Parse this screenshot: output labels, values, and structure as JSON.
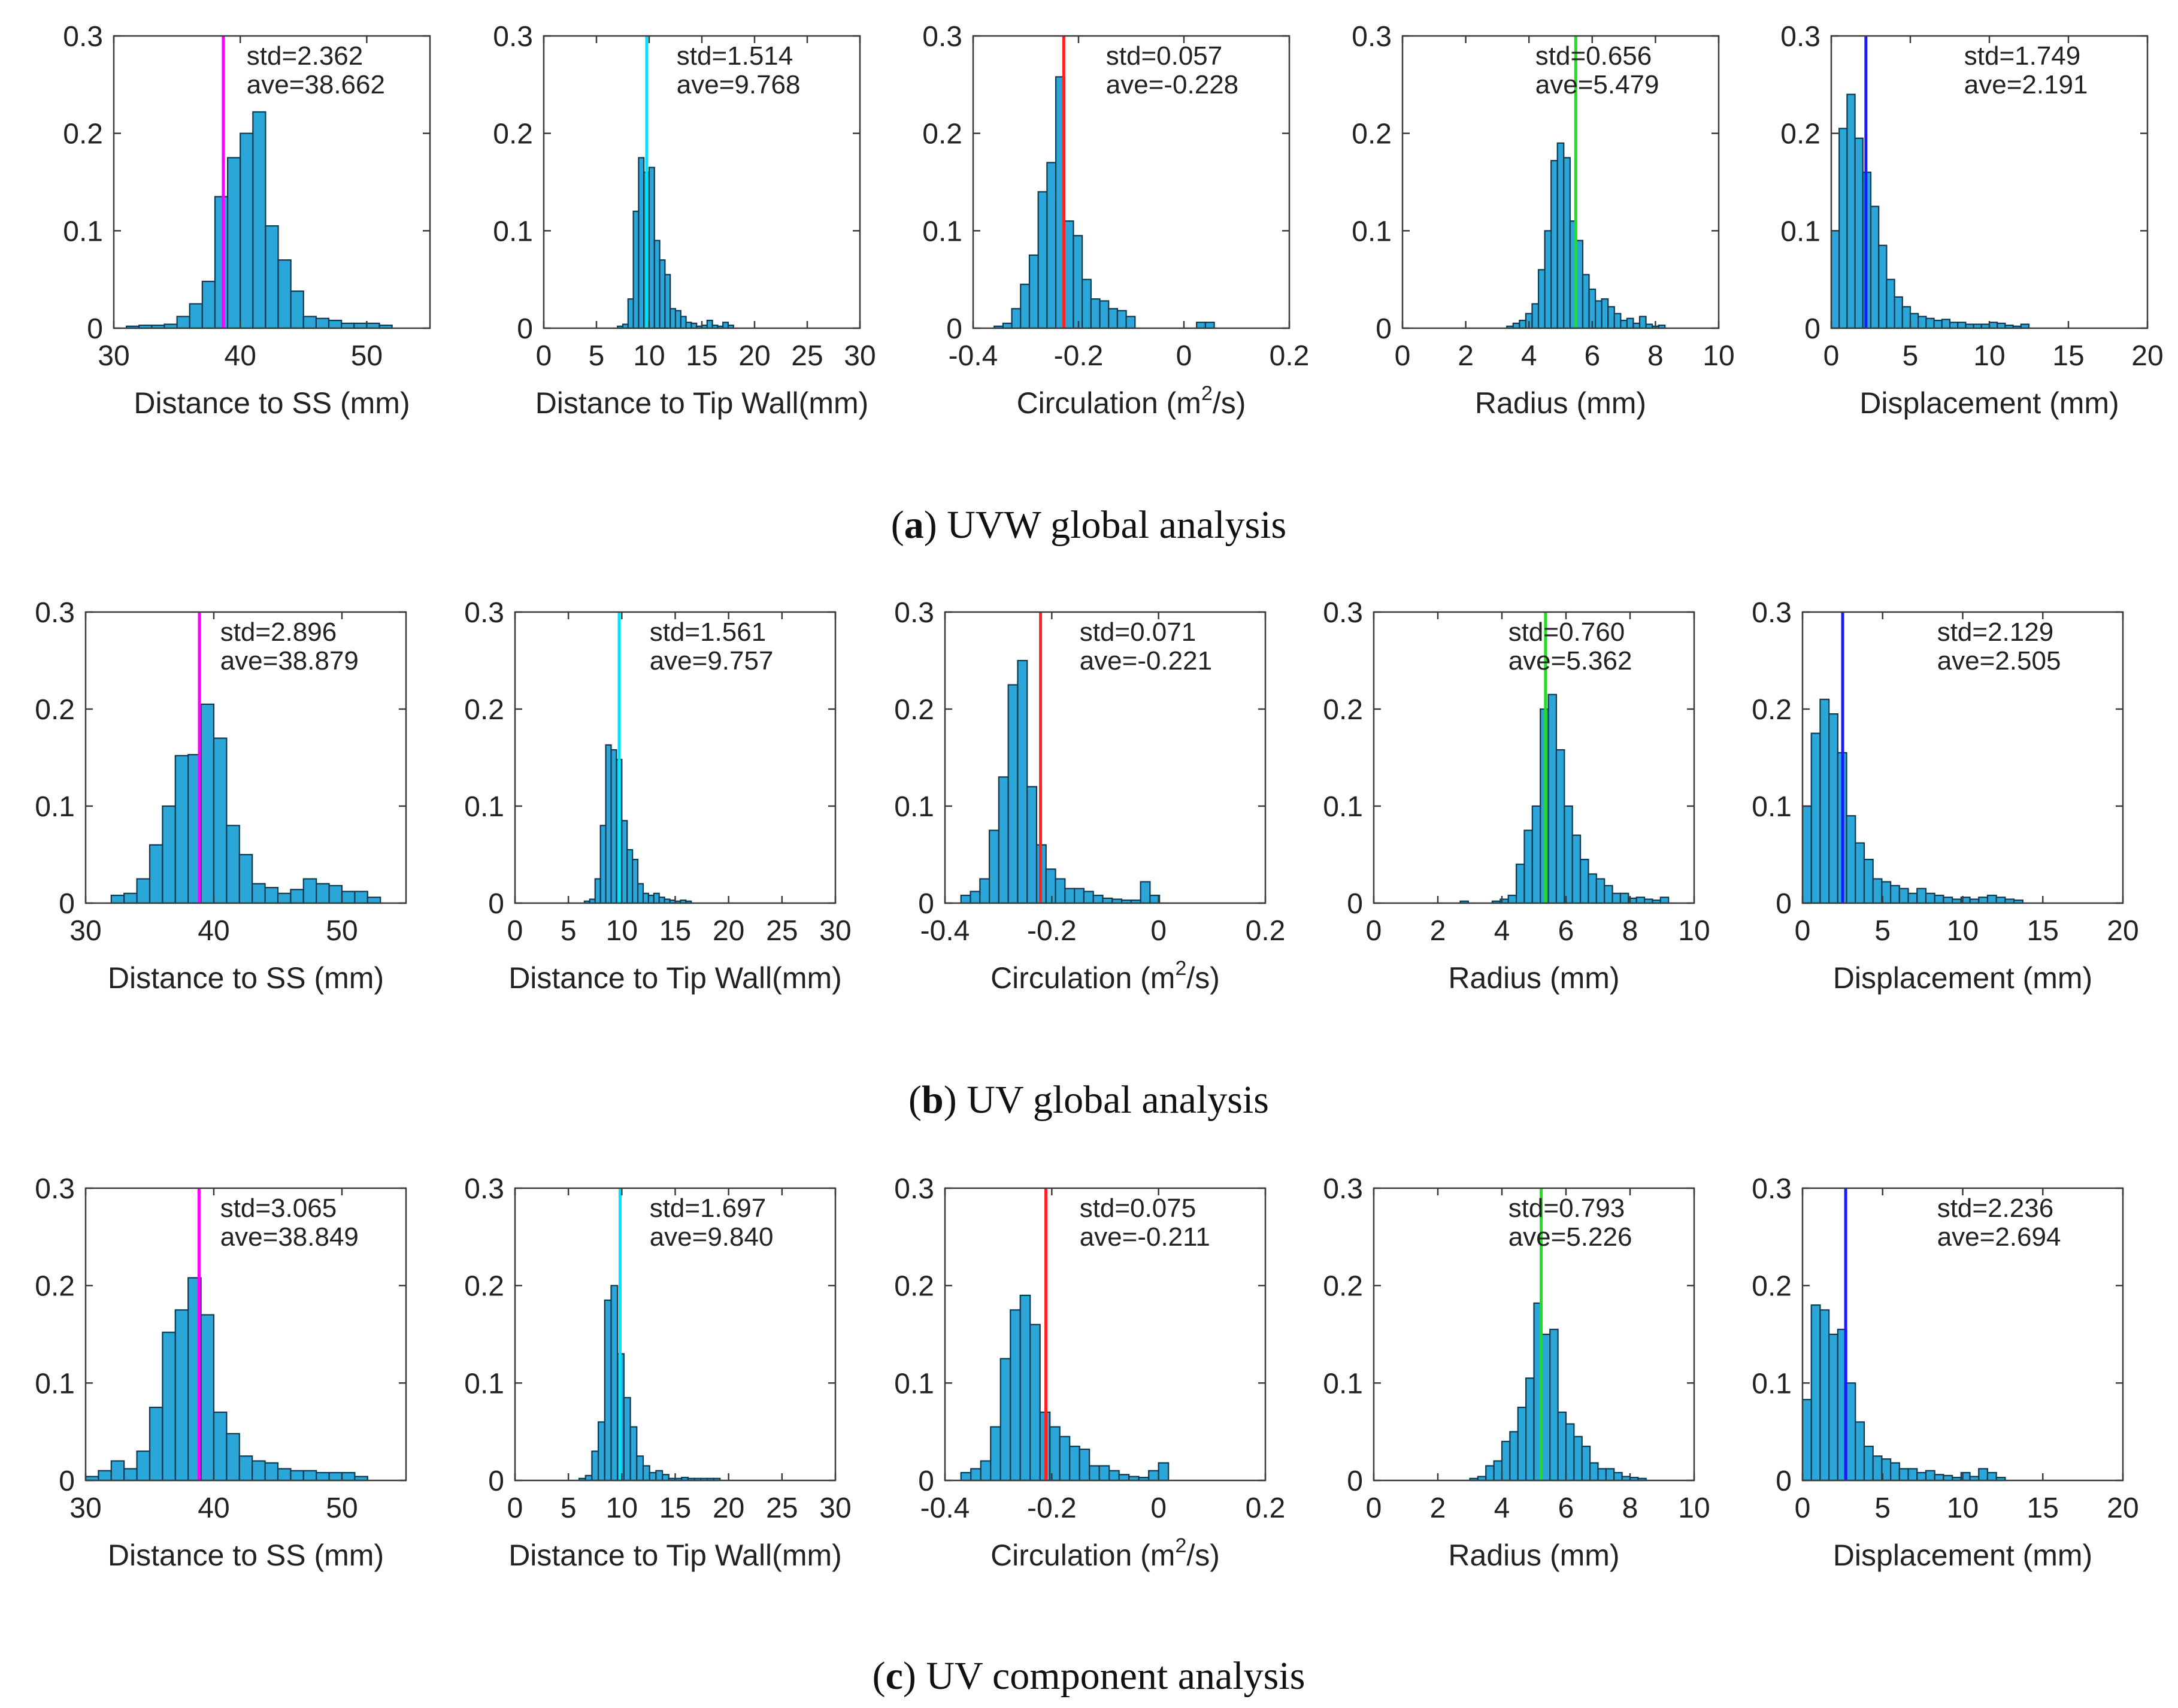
{
  "figure": {
    "panels": [
      {
        "letter": "a",
        "caption": " UVW global analysis",
        "open": "(",
        "close": ")"
      },
      {
        "letter": "b",
        "caption": " UV global analysis",
        "open": "(",
        "close": ")"
      },
      {
        "letter": "c",
        "caption": " UV component analysis",
        "open": "(",
        "close": ")"
      }
    ]
  },
  "colors": {
    "bar_fill": "#2aa6d8",
    "bar_edge": "#10394f",
    "axes": "#3a3a3a",
    "text": "#222222"
  },
  "chart_data": [
    {
      "type": "bar",
      "panel": "a",
      "col": 0,
      "xlabel": "Distance to SS (mm)",
      "xlim": [
        30,
        55
      ],
      "ylim": [
        0,
        0.3
      ],
      "xticks": [
        "30",
        "40",
        "50"
      ],
      "yticks": [
        "0",
        "0.1",
        "0.2",
        "0.3"
      ],
      "std_text": "std=2.362",
      "ave_text": "ave=38.662",
      "mean": 38.662,
      "line_color": "#ff00ff",
      "bin_start": 31.0,
      "bin_width": 1.0,
      "values": [
        0.002,
        0.003,
        0.003,
        0.004,
        0.012,
        0.025,
        0.048,
        0.135,
        0.175,
        0.2,
        0.222,
        0.105,
        0.07,
        0.038,
        0.012,
        0.01,
        0.008,
        0.005,
        0.005,
        0.005,
        0.003
      ]
    },
    {
      "type": "bar",
      "panel": "a",
      "col": 1,
      "xlabel": "Distance to Tip Wall(mm)",
      "xlim": [
        0,
        30
      ],
      "ylim": [
        0,
        0.3
      ],
      "xticks": [
        "0",
        "5",
        "10",
        "15",
        "20",
        "25",
        "30"
      ],
      "yticks": [
        "0",
        "0.1",
        "0.2",
        "0.3"
      ],
      "std_text": "std=1.514",
      "ave_text": "ave=9.768",
      "mean": 9.768,
      "line_color": "#00e5ff",
      "bin_start": 7.0,
      "bin_width": 0.5,
      "values": [
        0.002,
        0.004,
        0.03,
        0.12,
        0.175,
        0.16,
        0.165,
        0.09,
        0.07,
        0.055,
        0.02,
        0.018,
        0.012,
        0.006,
        0.005,
        0.002,
        0.003,
        0.008,
        0.003,
        0.002,
        0.006,
        0.003
      ]
    },
    {
      "type": "bar",
      "panel": "a",
      "col": 2,
      "xlabel": "Circulation (m",
      "xlabel_sup": "2",
      "xlabel_post": "/s)",
      "xlim": [
        -0.4,
        0.2
      ],
      "ylim": [
        0,
        0.3
      ],
      "xticks": [
        "-0.4",
        "-0.2",
        "0",
        "0.2"
      ],
      "yticks": [
        "0",
        "0.1",
        "0.2",
        "0.3"
      ],
      "std_text": "std=0.057",
      "ave_text": "ave=-0.228",
      "mean": -0.228,
      "line_color": "#ff2020",
      "bin_start": -0.36,
      "bin_width": 0.0167,
      "values": [
        0.002,
        0.005,
        0.02,
        0.045,
        0.075,
        0.14,
        0.17,
        0.258,
        0.11,
        0.095,
        0.05,
        0.03,
        0.028,
        0.02,
        0.018,
        0.012,
        0.0,
        0.0,
        0.0,
        0.0,
        0.0,
        0.0,
        0.0,
        0.006,
        0.006
      ]
    },
    {
      "type": "bar",
      "panel": "a",
      "col": 3,
      "xlabel": "Radius (mm)",
      "xlim": [
        0,
        10
      ],
      "ylim": [
        0,
        0.3
      ],
      "xticks": [
        "0",
        "2",
        "4",
        "6",
        "8",
        "10"
      ],
      "yticks": [
        "0",
        "0.1",
        "0.2",
        "0.3"
      ],
      "std_text": "std=0.656",
      "ave_text": "ave=5.479",
      "mean": 5.479,
      "line_color": "#22dd22",
      "bin_start": 3.3,
      "bin_width": 0.2,
      "values": [
        0.002,
        0.005,
        0.008,
        0.015,
        0.025,
        0.06,
        0.1,
        0.172,
        0.19,
        0.175,
        0.11,
        0.09,
        0.055,
        0.04,
        0.028,
        0.03,
        0.022,
        0.015,
        0.008,
        0.01,
        0.005,
        0.012,
        0.004,
        0.002,
        0.003
      ]
    },
    {
      "type": "bar",
      "panel": "a",
      "col": 4,
      "xlabel": "Displacement (mm)",
      "xlim": [
        0,
        20
      ],
      "ylim": [
        0,
        0.3
      ],
      "xticks": [
        "0",
        "5",
        "10",
        "15",
        "20"
      ],
      "yticks": [
        "0",
        "0.1",
        "0.2",
        "0.3"
      ],
      "std_text": "std=1.749",
      "ave_text": "ave=2.191",
      "mean": 2.191,
      "line_color": "#1a1aff",
      "bin_start": 0.0,
      "bin_width": 0.5,
      "values": [
        0.1,
        0.205,
        0.24,
        0.195,
        0.16,
        0.125,
        0.085,
        0.05,
        0.032,
        0.022,
        0.015,
        0.012,
        0.01,
        0.008,
        0.009,
        0.006,
        0.006,
        0.004,
        0.004,
        0.004,
        0.006,
        0.005,
        0.003,
        0.002,
        0.004
      ]
    },
    {
      "type": "bar",
      "panel": "b",
      "col": 0,
      "xlabel": "Distance to SS (mm)",
      "xlim": [
        30,
        55
      ],
      "ylim": [
        0,
        0.3
      ],
      "xticks": [
        "30",
        "40",
        "50"
      ],
      "yticks": [
        "0",
        "0.1",
        "0.2",
        "0.3"
      ],
      "std_text": "std=2.896",
      "ave_text": "ave=38.879",
      "mean": 38.879,
      "line_color": "#ff00ff",
      "bin_start": 32.0,
      "bin_width": 1.0,
      "values": [
        0.008,
        0.01,
        0.025,
        0.06,
        0.1,
        0.152,
        0.153,
        0.205,
        0.17,
        0.08,
        0.05,
        0.02,
        0.016,
        0.01,
        0.014,
        0.025,
        0.02,
        0.018,
        0.012,
        0.012,
        0.006
      ]
    },
    {
      "type": "bar",
      "panel": "b",
      "col": 1,
      "xlabel": "Distance to Tip Wall(mm)",
      "xlim": [
        0,
        30
      ],
      "ylim": [
        0,
        0.3
      ],
      "xticks": [
        "0",
        "5",
        "10",
        "15",
        "20",
        "25",
        "30"
      ],
      "yticks": [
        "0",
        "0.1",
        "0.2",
        "0.3"
      ],
      "std_text": "std=1.561",
      "ave_text": "ave=9.757",
      "mean": 9.757,
      "line_color": "#00e5ff",
      "bin_start": 6.5,
      "bin_width": 0.5,
      "values": [
        0.002,
        0.004,
        0.025,
        0.08,
        0.163,
        0.158,
        0.148,
        0.085,
        0.055,
        0.045,
        0.02,
        0.01,
        0.008,
        0.01,
        0.006,
        0.004,
        0.003,
        0.002,
        0.003,
        0.002
      ]
    },
    {
      "type": "bar",
      "panel": "b",
      "col": 2,
      "xlabel": "Circulation (m",
      "xlabel_sup": "2",
      "xlabel_post": "/s)",
      "xlim": [
        -0.4,
        0.2
      ],
      "ylim": [
        0,
        0.3
      ],
      "xticks": [
        "-0.4",
        "-0.2",
        "0",
        "0.2"
      ],
      "yticks": [
        "0",
        "0.1",
        "0.2",
        "0.3"
      ],
      "std_text": "std=0.071",
      "ave_text": "ave=-0.221",
      "mean": -0.221,
      "line_color": "#ff2020",
      "bin_start": -0.37,
      "bin_width": 0.0177,
      "values": [
        0.008,
        0.012,
        0.025,
        0.075,
        0.13,
        0.225,
        0.25,
        0.12,
        0.06,
        0.035,
        0.025,
        0.015,
        0.015,
        0.012,
        0.008,
        0.005,
        0.004,
        0.003,
        0.003,
        0.022,
        0.008
      ]
    },
    {
      "type": "bar",
      "panel": "b",
      "col": 3,
      "xlabel": "Radius (mm)",
      "xlim": [
        0,
        10
      ],
      "ylim": [
        0,
        0.3
      ],
      "xticks": [
        "0",
        "2",
        "4",
        "6",
        "8",
        "10"
      ],
      "yticks": [
        "0",
        "0.1",
        "0.2",
        "0.3"
      ],
      "std_text": "std=0.760",
      "ave_text": "ave=5.362",
      "mean": 5.362,
      "line_color": "#22dd22",
      "bin_start": 2.7,
      "bin_width": 0.25,
      "values": [
        0.002,
        0.0,
        0.0,
        0.0,
        0.002,
        0.004,
        0.008,
        0.04,
        0.075,
        0.1,
        0.2,
        0.215,
        0.158,
        0.1,
        0.07,
        0.045,
        0.03,
        0.025,
        0.018,
        0.01,
        0.01,
        0.005,
        0.006,
        0.004,
        0.003,
        0.006
      ]
    },
    {
      "type": "bar",
      "panel": "b",
      "col": 4,
      "xlabel": "Displacement (mm)",
      "xlim": [
        0,
        20
      ],
      "ylim": [
        0,
        0.3
      ],
      "xticks": [
        "0",
        "5",
        "10",
        "15",
        "20"
      ],
      "yticks": [
        "0",
        "0.1",
        "0.2",
        "0.3"
      ],
      "std_text": "std=2.129",
      "ave_text": "ave=2.505",
      "mean": 2.505,
      "line_color": "#1a1aff",
      "bin_start": 0.0,
      "bin_width": 0.55,
      "values": [
        0.1,
        0.175,
        0.21,
        0.195,
        0.155,
        0.09,
        0.062,
        0.045,
        0.025,
        0.022,
        0.018,
        0.015,
        0.01,
        0.015,
        0.01,
        0.008,
        0.006,
        0.004,
        0.006,
        0.004,
        0.006,
        0.008,
        0.006,
        0.004,
        0.003
      ]
    },
    {
      "type": "bar",
      "panel": "c",
      "col": 0,
      "xlabel": "Distance to SS (mm)",
      "xlim": [
        30,
        55
      ],
      "ylim": [
        0,
        0.3
      ],
      "xticks": [
        "30",
        "40",
        "50"
      ],
      "yticks": [
        "0",
        "0.1",
        "0.2",
        "0.3"
      ],
      "std_text": "std=3.065",
      "ave_text": "ave=38.849",
      "mean": 38.849,
      "line_color": "#ff00ff",
      "bin_start": 30.0,
      "bin_width": 1.0,
      "values": [
        0.004,
        0.01,
        0.02,
        0.012,
        0.03,
        0.075,
        0.152,
        0.175,
        0.208,
        0.17,
        0.07,
        0.048,
        0.025,
        0.02,
        0.018,
        0.012,
        0.01,
        0.01,
        0.008,
        0.008,
        0.008,
        0.004
      ]
    },
    {
      "type": "bar",
      "panel": "c",
      "col": 1,
      "xlabel": "Distance to Tip Wall(mm)",
      "xlim": [
        0,
        30
      ],
      "ylim": [
        0,
        0.3
      ],
      "xticks": [
        "0",
        "5",
        "10",
        "15",
        "20",
        "25",
        "30"
      ],
      "yticks": [
        "0",
        "0.1",
        "0.2",
        "0.3"
      ],
      "std_text": "std=1.697",
      "ave_text": "ave=9.840",
      "mean": 9.84,
      "line_color": "#00e5ff",
      "bin_start": 6.0,
      "bin_width": 0.6,
      "values": [
        0.002,
        0.005,
        0.03,
        0.06,
        0.185,
        0.2,
        0.13,
        0.085,
        0.055,
        0.025,
        0.015,
        0.008,
        0.01,
        0.006,
        0.002,
        0.002,
        0.003,
        0.002,
        0.002,
        0.002,
        0.002,
        0.002
      ]
    },
    {
      "type": "bar",
      "panel": "c",
      "col": 2,
      "xlabel": "Circulation (m",
      "xlabel_sup": "2",
      "xlabel_post": "/s)",
      "xlim": [
        -0.4,
        0.2
      ],
      "ylim": [
        0,
        0.3
      ],
      "xticks": [
        "-0.4",
        "-0.2",
        "0",
        "0.2"
      ],
      "yticks": [
        "0",
        "0.1",
        "0.2",
        "0.3"
      ],
      "std_text": "std=0.075",
      "ave_text": "ave=-0.211",
      "mean": -0.211,
      "line_color": "#ff2020",
      "bin_start": -0.37,
      "bin_width": 0.0185,
      "values": [
        0.008,
        0.012,
        0.02,
        0.055,
        0.125,
        0.175,
        0.19,
        0.16,
        0.07,
        0.055,
        0.045,
        0.035,
        0.032,
        0.015,
        0.015,
        0.01,
        0.006,
        0.004,
        0.003,
        0.01,
        0.018
      ]
    },
    {
      "type": "bar",
      "panel": "c",
      "col": 3,
      "xlabel": "Radius (mm)",
      "xlim": [
        0,
        10
      ],
      "ylim": [
        0,
        0.3
      ],
      "xticks": [
        "0",
        "2",
        "4",
        "6",
        "8",
        "10"
      ],
      "yticks": [
        "0",
        "0.1",
        "0.2",
        "0.3"
      ],
      "std_text": "std=0.793",
      "ave_text": "ave=5.226",
      "mean": 5.226,
      "line_color": "#22dd22",
      "bin_start": 3.0,
      "bin_width": 0.25,
      "values": [
        0.002,
        0.004,
        0.015,
        0.02,
        0.04,
        0.05,
        0.075,
        0.105,
        0.182,
        0.15,
        0.155,
        0.07,
        0.058,
        0.045,
        0.035,
        0.018,
        0.012,
        0.012,
        0.008,
        0.004,
        0.003,
        0.002
      ]
    },
    {
      "type": "bar",
      "panel": "c",
      "col": 4,
      "xlabel": "Displacement (mm)",
      "xlim": [
        0,
        20
      ],
      "ylim": [
        0,
        0.3
      ],
      "xticks": [
        "0",
        "5",
        "10",
        "15",
        "20"
      ],
      "yticks": [
        "0",
        "0.1",
        "0.2",
        "0.3"
      ],
      "std_text": "std=2.236",
      "ave_text": "ave=2.694",
      "mean": 2.694,
      "line_color": "#1a1aff",
      "bin_start": 0.0,
      "bin_width": 0.55,
      "values": [
        0.083,
        0.18,
        0.175,
        0.15,
        0.155,
        0.1,
        0.06,
        0.035,
        0.025,
        0.022,
        0.018,
        0.012,
        0.012,
        0.008,
        0.01,
        0.006,
        0.005,
        0.003,
        0.008,
        0.004,
        0.012,
        0.008,
        0.003
      ]
    }
  ]
}
